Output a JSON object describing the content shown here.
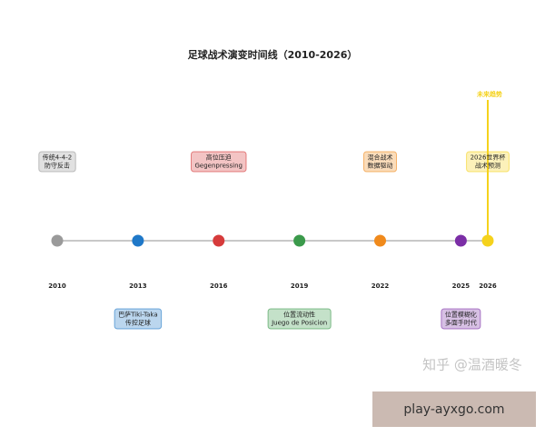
{
  "chart_data": {
    "type": "timeline",
    "title": "足球战术演变时间线（2010-2026）",
    "x": [
      2010,
      2013,
      2016,
      2019,
      2022,
      2025,
      2026
    ],
    "xlim": [
      2010,
      2026
    ],
    "xticks": [
      2010,
      2013,
      2016,
      2019,
      2022,
      2025,
      2026
    ],
    "colors": [
      "#9a9a9a",
      "#1f78c8",
      "#d63b3b",
      "#3b9a4b",
      "#f08a1c",
      "#7b2ea6",
      "#f5d21c"
    ],
    "labels": [
      [
        "传统4-4-2",
        "防守反击"
      ],
      [
        "巴萨Tiki-Taka",
        "传控足球"
      ],
      [
        "高位压迫",
        "Gegenpressing"
      ],
      [
        "位置流动性",
        "Juego de Posicion"
      ],
      [
        "混合战术",
        "数据驱动"
      ],
      [
        "位置模糊化",
        "多面手时代"
      ],
      [
        "2026世界杯",
        "战术预测"
      ]
    ],
    "label_positions": [
      "above",
      "below",
      "above",
      "below",
      "above",
      "below",
      "above"
    ],
    "highlight": {
      "x": 2026,
      "label": "未来趋势",
      "color": "#f5d21c"
    }
  },
  "watermark": "知乎 @温酒暖冬",
  "footer": "play-ayxgo.com"
}
